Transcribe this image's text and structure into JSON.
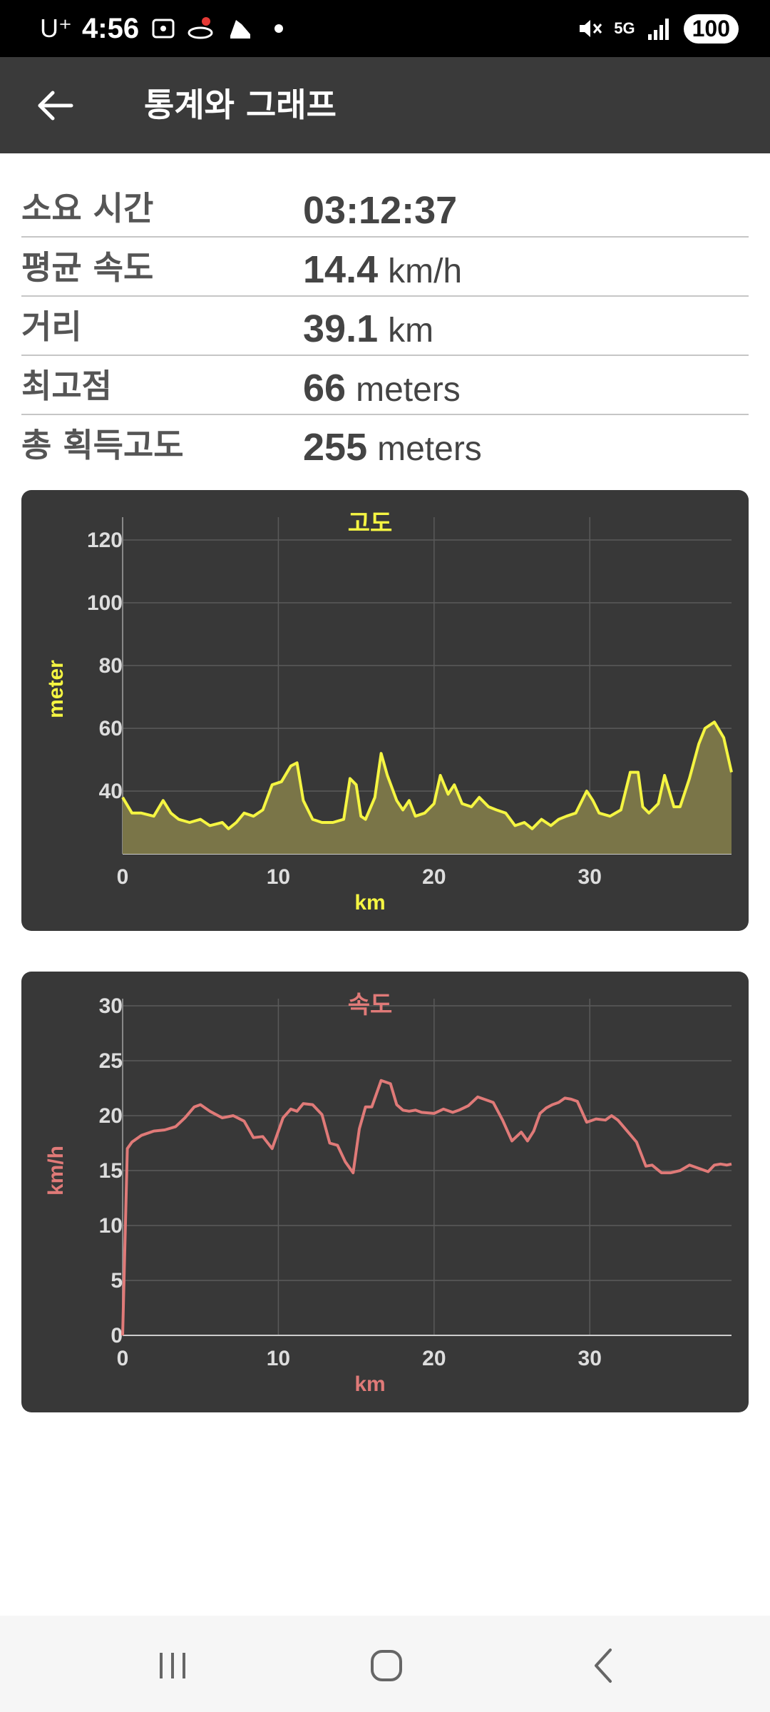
{
  "status_bar": {
    "carrier": "U⁺",
    "time": "4:56",
    "network": "5G",
    "battery": "100"
  },
  "app_bar": {
    "title": "통계와 그래프"
  },
  "stats": [
    {
      "label": "소요 시간",
      "value": "03:12:37",
      "unit": ""
    },
    {
      "label": "평균 속도",
      "value": "14.4",
      "unit": "km/h"
    },
    {
      "label": "거리",
      "value": "39.1",
      "unit": "km"
    },
    {
      "label": "최고점",
      "value": "66",
      "unit": "meters"
    },
    {
      "label": "총 획득고도",
      "value": "255",
      "unit": "meters"
    }
  ],
  "chart_data": [
    {
      "type": "area",
      "title": "고도",
      "xlabel": "km",
      "ylabel": "meter",
      "xlim": [
        0,
        39.1
      ],
      "ylim": [
        20,
        125
      ],
      "x_ticks": [
        0,
        10,
        20,
        30
      ],
      "y_ticks": [
        40,
        60,
        80,
        100,
        120
      ],
      "grid": true,
      "color": "#f5f542",
      "fill": "#7a7548",
      "x": [
        0,
        0.6,
        1.2,
        2,
        2.6,
        3.1,
        3.6,
        4.3,
        5,
        5.6,
        6.4,
        6.8,
        7.3,
        7.8,
        8.4,
        9,
        9.6,
        10.2,
        10.8,
        11.2,
        11.6,
        12.2,
        12.8,
        13.5,
        14.2,
        14.6,
        15,
        15.3,
        15.6,
        16.2,
        16.6,
        17,
        17.6,
        18,
        18.4,
        18.8,
        19.4,
        20,
        20.4,
        20.9,
        21.3,
        21.8,
        22.4,
        22.9,
        23.5,
        24,
        24.6,
        25.2,
        25.8,
        26.3,
        26.9,
        27.5,
        28,
        28.5,
        29.1,
        29.8,
        30.2,
        30.6,
        31.3,
        32,
        32.6,
        33.1,
        33.4,
        33.8,
        34.4,
        34.8,
        35.4,
        35.8,
        36.4,
        37,
        37.4,
        38,
        38.6,
        39.1
      ],
      "y": [
        38,
        33,
        33,
        32,
        37,
        33,
        31,
        30,
        31,
        29,
        30,
        28,
        30,
        33,
        32,
        34,
        42,
        43,
        48,
        49,
        37,
        31,
        30,
        30,
        31,
        44,
        42,
        32,
        31,
        38,
        52,
        45,
        37,
        34,
        37,
        32,
        33,
        36,
        45,
        39,
        42,
        36,
        35,
        38,
        35,
        34,
        33,
        29,
        30,
        28,
        31,
        29,
        31,
        32,
        33,
        40,
        37,
        33,
        32,
        34,
        46,
        46,
        35,
        33,
        36,
        45,
        35,
        35,
        44,
        55,
        60,
        62,
        57,
        46
      ]
    },
    {
      "type": "line",
      "title": "속도",
      "xlabel": "km",
      "ylabel": "km/h",
      "xlim": [
        0,
        39.1
      ],
      "ylim": [
        0,
        30
      ],
      "x_ticks": [
        0,
        10,
        20,
        30
      ],
      "y_ticks": [
        0,
        5,
        10,
        15,
        20,
        25,
        30
      ],
      "grid": true,
      "color": "#e07a78",
      "x": [
        0,
        0.3,
        0.6,
        1.2,
        2,
        2.7,
        3.4,
        4,
        4.6,
        5,
        5.6,
        6.4,
        7.1,
        7.8,
        8.4,
        9,
        9.6,
        10.3,
        10.8,
        11.2,
        11.6,
        12.2,
        12.8,
        13.3,
        13.8,
        14.3,
        14.8,
        15.2,
        15.6,
        16,
        16.6,
        17.2,
        17.6,
        18,
        18.4,
        18.8,
        19.2,
        20,
        20.6,
        21.2,
        21.6,
        22.2,
        22.8,
        23.4,
        23.8,
        24.4,
        25,
        25.6,
        26,
        26.4,
        26.8,
        27.2,
        27.6,
        28,
        28.4,
        28.8,
        29.2,
        29.8,
        30.4,
        31,
        31.4,
        31.8,
        32.4,
        33,
        33.6,
        34,
        34.6,
        35.2,
        35.8,
        36.4,
        37,
        37.6,
        38,
        38.4,
        38.8,
        39.1
      ],
      "y": [
        0,
        17,
        17.6,
        18.2,
        18.6,
        18.7,
        19,
        19.8,
        20.8,
        21,
        20.4,
        19.8,
        20,
        19.5,
        18,
        18.1,
        17,
        19.8,
        20.6,
        20.4,
        21.1,
        21,
        20.1,
        17.5,
        17.3,
        15.8,
        14.8,
        18.8,
        20.8,
        20.8,
        23.2,
        22.9,
        21,
        20.5,
        20.4,
        20.5,
        20.3,
        20.2,
        20.6,
        20.3,
        20.5,
        20.9,
        21.7,
        21.4,
        21.2,
        19.6,
        17.7,
        18.5,
        17.7,
        18.6,
        20.2,
        20.7,
        21,
        21.2,
        21.6,
        21.5,
        21.3,
        19.4,
        19.7,
        19.6,
        20,
        19.6,
        18.6,
        17.6,
        15.4,
        15.5,
        14.8,
        14.8,
        15,
        15.5,
        15.2,
        14.9,
        15.5,
        15.6,
        15.5,
        15.6
      ]
    }
  ]
}
